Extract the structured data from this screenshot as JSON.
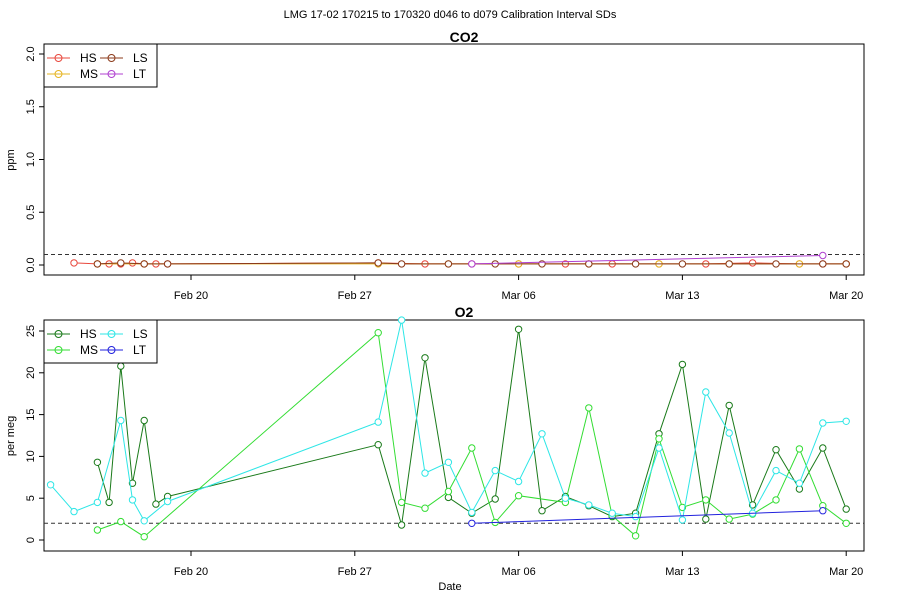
{
  "figure_title": "LMG   17-02    170215 to 170320    d046 to d079   Calibration Interval SDs",
  "x_axis": {
    "label": "Date",
    "ticks": [
      "Feb 20",
      "Feb 27",
      "Mar 06",
      "Mar 13",
      "Mar 20"
    ],
    "tick_dates": [
      "2017-02-20",
      "2017-02-27",
      "2017-03-06",
      "2017-03-13",
      "2017-03-20"
    ]
  },
  "chart_data": [
    {
      "type": "line",
      "title": "CO2",
      "ylabel": "ppm",
      "xlabel": "",
      "ylim": [
        0,
        2.0
      ],
      "yticks": [
        "0.0",
        "0.5",
        "1.0",
        "1.5",
        "2.0"
      ],
      "reference_line": 0.1,
      "legend_placement": "top-left",
      "series": [
        {
          "name": "HS",
          "color": "#e8483d",
          "x": [
            "2017-02-15",
            "2017-02-16",
            "2017-02-16T12",
            "2017-02-17",
            "2017-02-17T12",
            "2017-02-18",
            "2017-02-18T12",
            "2017-02-19",
            "2017-02-28",
            "2017-03-02",
            "2017-03-04",
            "2017-03-06",
            "2017-03-08",
            "2017-03-10",
            "2017-03-12",
            "2017-03-14",
            "2017-03-16",
            "2017-03-18",
            "2017-03-19",
            "2017-03-20"
          ],
          "y": [
            0.02,
            0.01,
            0.01,
            0.01,
            0.02,
            0.01,
            0.01,
            0.01,
            0.02,
            0.01,
            0.01,
            0.01,
            0.01,
            0.01,
            0.01,
            0.01,
            0.02,
            0.01,
            0.01,
            0.01
          ]
        },
        {
          "name": "MS",
          "color": "#e6b422",
          "x": [
            "2017-02-16",
            "2017-02-18",
            "2017-02-28",
            "2017-03-03",
            "2017-03-06",
            "2017-03-09",
            "2017-03-12",
            "2017-03-15",
            "2017-03-18",
            "2017-03-20"
          ],
          "y": [
            0.01,
            0.01,
            0.01,
            0.01,
            0.01,
            0.01,
            0.01,
            0.01,
            0.01,
            0.01
          ]
        },
        {
          "name": "LS",
          "color": "#8b3a1a",
          "x": [
            "2017-02-16",
            "2017-02-17",
            "2017-02-18",
            "2017-02-19",
            "2017-02-28",
            "2017-03-01",
            "2017-03-03",
            "2017-03-05",
            "2017-03-07",
            "2017-03-09",
            "2017-03-11",
            "2017-03-13",
            "2017-03-15",
            "2017-03-17",
            "2017-03-19",
            "2017-03-20"
          ],
          "y": [
            0.01,
            0.02,
            0.01,
            0.01,
            0.02,
            0.01,
            0.01,
            0.01,
            0.01,
            0.01,
            0.01,
            0.01,
            0.01,
            0.01,
            0.01,
            0.01
          ]
        },
        {
          "name": "LT",
          "color": "#b040d0",
          "x": [
            "2017-03-04",
            "2017-03-19"
          ],
          "y": [
            0.01,
            0.09
          ]
        }
      ]
    },
    {
      "type": "line",
      "title": "O2",
      "ylabel": "per meg",
      "xlabel": "Date",
      "ylim": [
        0,
        25
      ],
      "yticks": [
        "0",
        "5",
        "10",
        "15",
        "20",
        "25"
      ],
      "reference_line": 2,
      "legend_placement": "top-left",
      "series": [
        {
          "name": "HS",
          "color": "#1a7a1a",
          "x": [
            "2017-02-16",
            "2017-02-16T12",
            "2017-02-17",
            "2017-02-17T12",
            "2017-02-18",
            "2017-02-18T12",
            "2017-02-19",
            "2017-02-28",
            "2017-03-01",
            "2017-03-02",
            "2017-03-03",
            "2017-03-04",
            "2017-03-05",
            "2017-03-06",
            "2017-03-07",
            "2017-03-08",
            "2017-03-09",
            "2017-03-10",
            "2017-03-11",
            "2017-03-12",
            "2017-03-13",
            "2017-03-14",
            "2017-03-15",
            "2017-03-16",
            "2017-03-17",
            "2017-03-18",
            "2017-03-19",
            "2017-03-20"
          ],
          "y": [
            9.3,
            4.5,
            20.8,
            6.8,
            14.3,
            4.3,
            5.2,
            11.4,
            1.8,
            21.8,
            5.1,
            3.2,
            4.9,
            25.2,
            3.5,
            5.2,
            4.1,
            2.8,
            3.2,
            12.7,
            21.0,
            2.5,
            16.1,
            4.2,
            10.8,
            6.1,
            11.0,
            3.7
          ]
        },
        {
          "name": "MS",
          "color": "#33dd33",
          "x": [
            "2017-02-16",
            "2017-02-17",
            "2017-02-18",
            "2017-02-28",
            "2017-03-01",
            "2017-03-02",
            "2017-03-03",
            "2017-03-04",
            "2017-03-05",
            "2017-03-06",
            "2017-03-08",
            "2017-03-09",
            "2017-03-10",
            "2017-03-11",
            "2017-03-12",
            "2017-03-13",
            "2017-03-14",
            "2017-03-15",
            "2017-03-16",
            "2017-03-17",
            "2017-03-18",
            "2017-03-19",
            "2017-03-20"
          ],
          "y": [
            1.2,
            2.2,
            0.4,
            24.8,
            4.5,
            3.8,
            5.8,
            11.0,
            2.1,
            5.3,
            4.5,
            15.8,
            2.9,
            0.5,
            12.1,
            3.9,
            4.8,
            2.5,
            3.1,
            4.8,
            10.9,
            4.1,
            2.0
          ]
        },
        {
          "name": "LS",
          "color": "#2ee6e6",
          "x": [
            "2017-02-14",
            "2017-02-15",
            "2017-02-16",
            "2017-02-17",
            "2017-02-17T12",
            "2017-02-18",
            "2017-02-19",
            "2017-02-28",
            "2017-03-01",
            "2017-03-02",
            "2017-03-03",
            "2017-03-04",
            "2017-03-05",
            "2017-03-06",
            "2017-03-07",
            "2017-03-08",
            "2017-03-09",
            "2017-03-10",
            "2017-03-11",
            "2017-03-12",
            "2017-03-13",
            "2017-03-14",
            "2017-03-15",
            "2017-03-16",
            "2017-03-17",
            "2017-03-18",
            "2017-03-19",
            "2017-03-20"
          ],
          "y": [
            6.6,
            3.4,
            4.5,
            14.3,
            4.8,
            2.3,
            4.6,
            14.1,
            26.3,
            8.0,
            9.3,
            3.3,
            8.3,
            7.0,
            12.7,
            5.0,
            4.2,
            3.2,
            2.8,
            11.0,
            2.4,
            17.7,
            12.8,
            3.2,
            8.3,
            6.8,
            14.0,
            14.2
          ]
        },
        {
          "name": "LT",
          "color": "#2222dd",
          "x": [
            "2017-03-04",
            "2017-03-19"
          ],
          "y": [
            2.0,
            3.5
          ]
        }
      ]
    }
  ]
}
